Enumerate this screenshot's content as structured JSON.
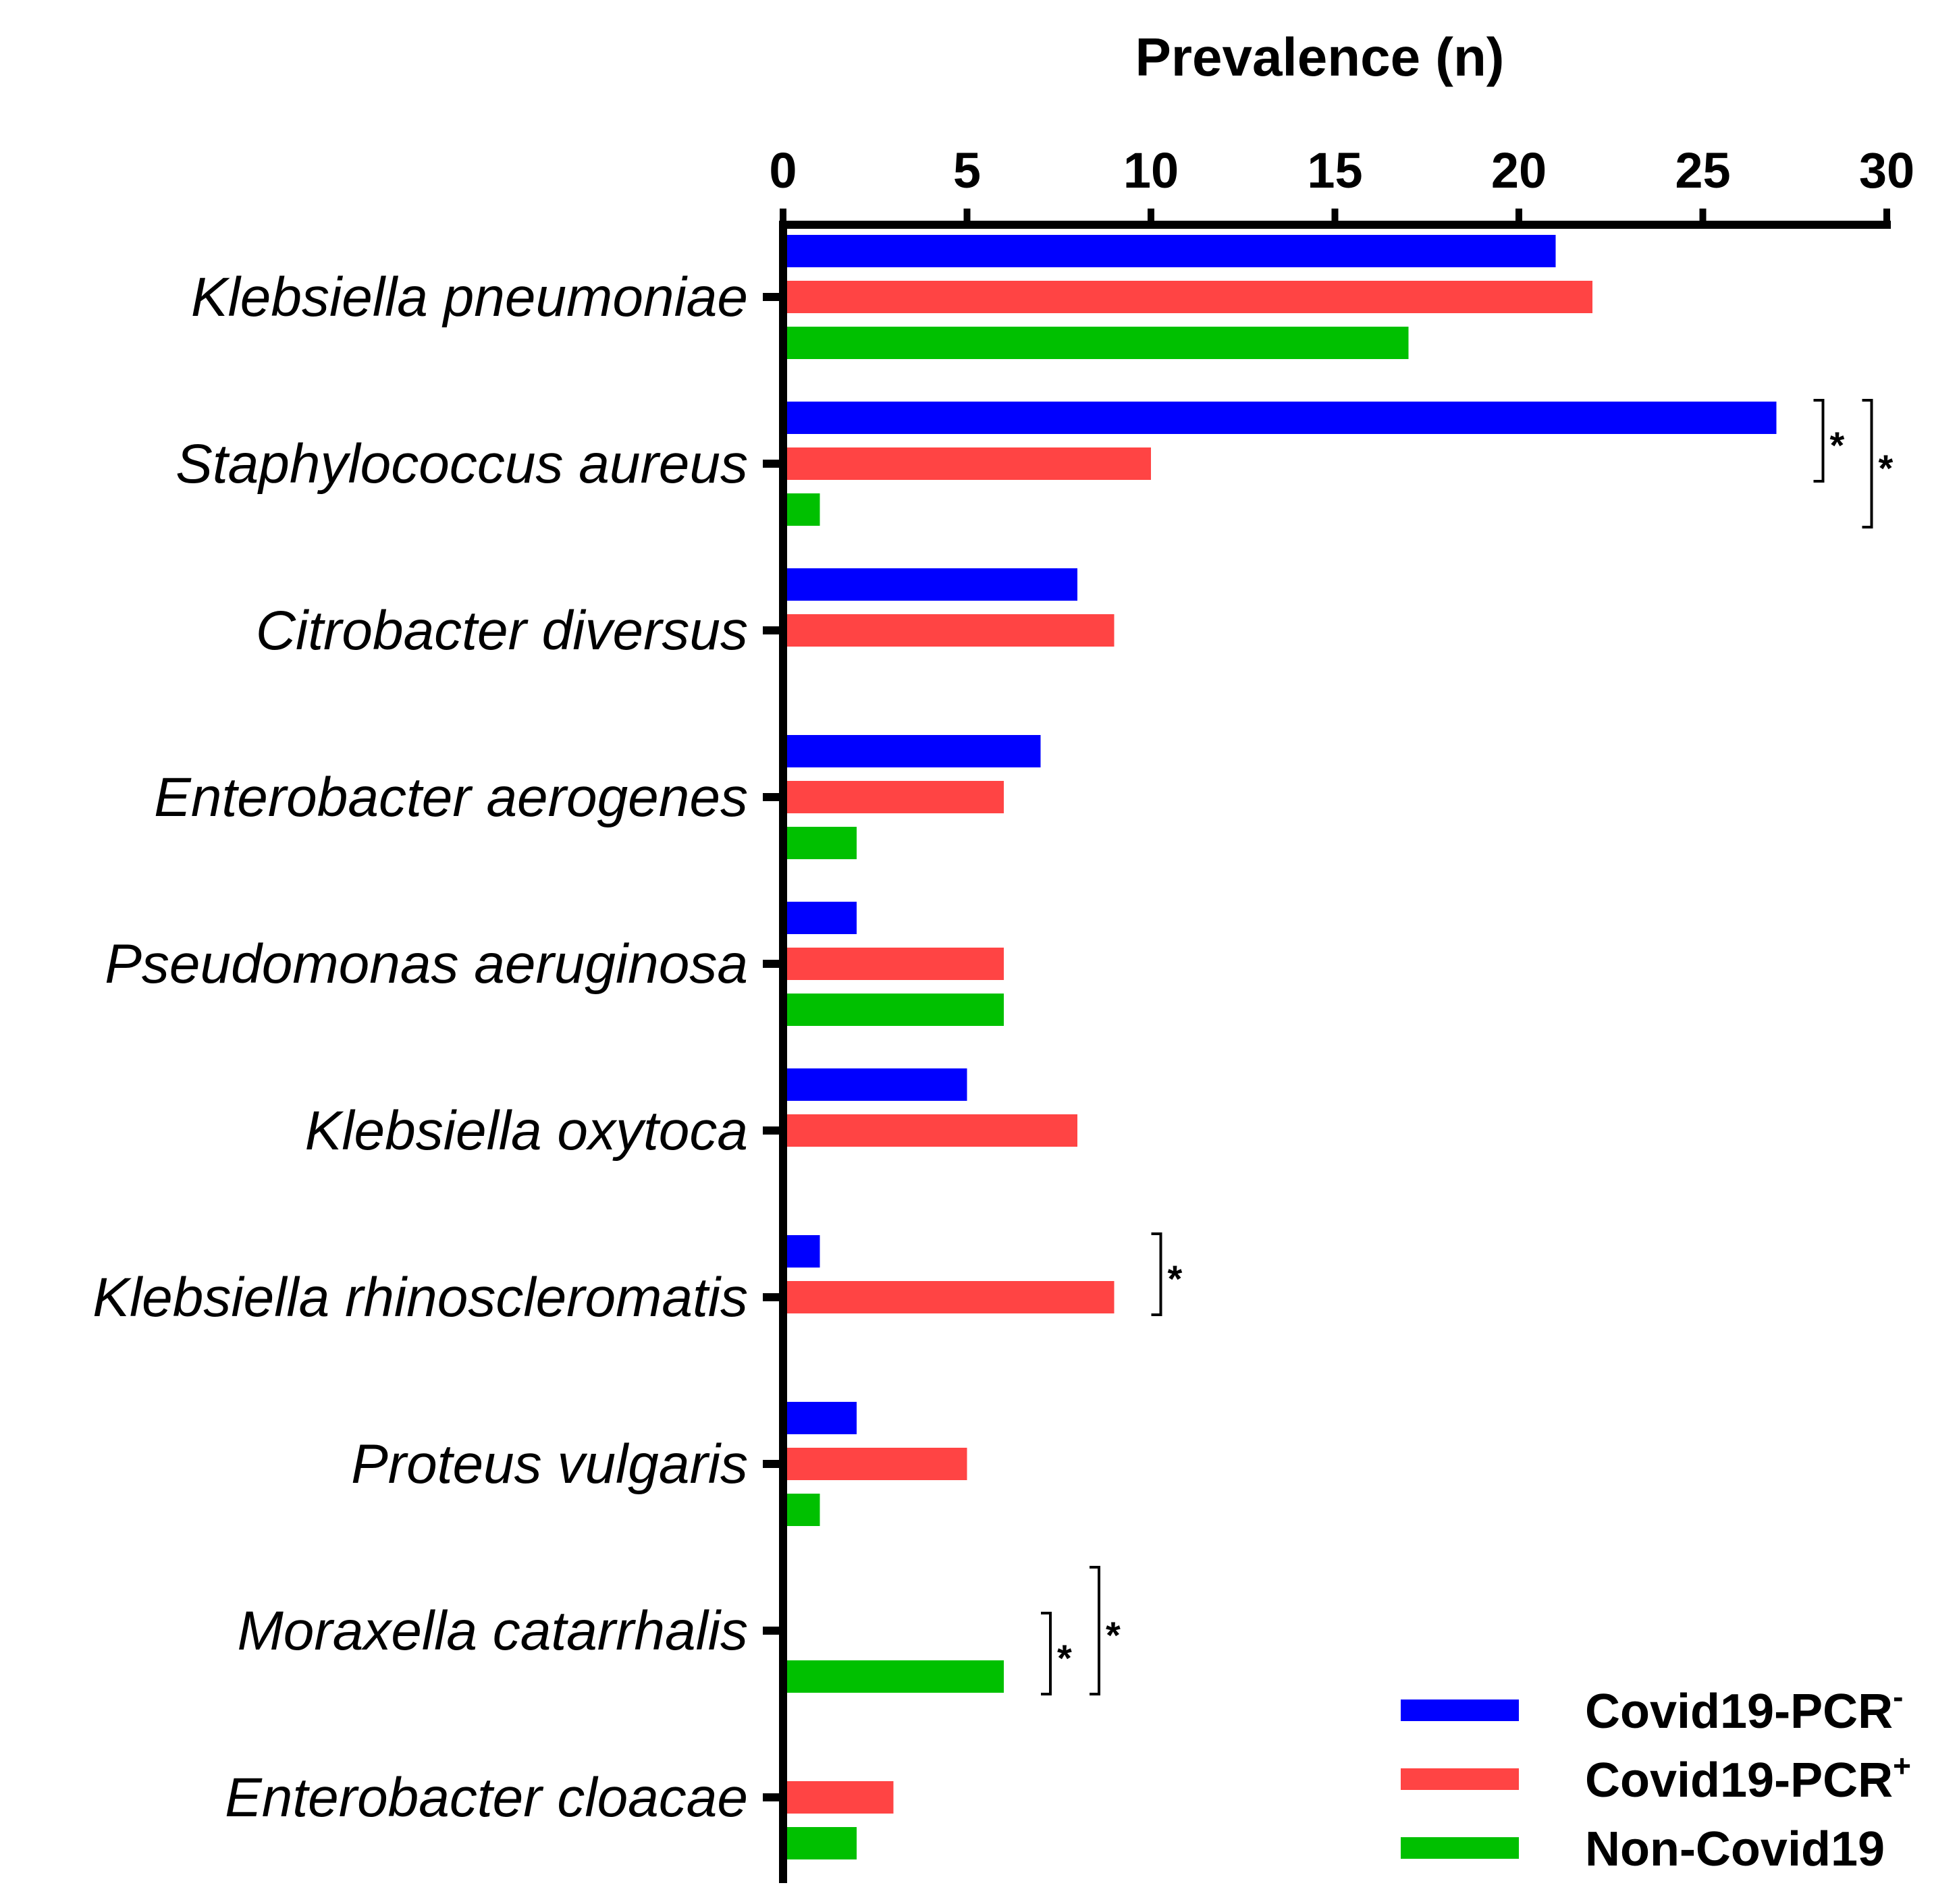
{
  "chart_data": {
    "type": "bar",
    "orientation": "horizontal",
    "xlabel": "Prevalence (n)",
    "xlim": [
      0,
      30
    ],
    "xticks": [
      0,
      5,
      10,
      15,
      20,
      25,
      30
    ],
    "categories": [
      "Klebsiella pneumoniae",
      "Staphylococcus aureus",
      "Citrobacter diversus",
      "Enterobacter aerogenes",
      "Pseudomonas aeruginosa",
      "Klebsiella oxytoca",
      "Klebsiella rhinoscleromatis",
      "Proteus vulgaris",
      "Moraxella catarrhalis",
      "Enterobacter cloacae"
    ],
    "series": [
      {
        "name": "Covid19-PCR",
        "superscript": "-",
        "color": "#0000ff",
        "values": [
          21,
          27,
          8,
          7,
          2,
          5,
          1,
          2,
          0,
          0
        ]
      },
      {
        "name": "Covid19-PCR",
        "superscript": "+",
        "color": "#ff4444",
        "values": [
          22,
          10,
          9,
          6,
          6,
          8,
          9,
          5,
          0,
          3
        ]
      },
      {
        "name": "Non-Covid19",
        "superscript": "",
        "color": "#00c000",
        "values": [
          17,
          1,
          0,
          2,
          6,
          0,
          0,
          1,
          6,
          2
        ]
      }
    ],
    "significance": [
      {
        "category": 1,
        "from": 0,
        "to": 1,
        "label": "*"
      },
      {
        "category": 1,
        "from": 0,
        "to": 2,
        "label": "*"
      },
      {
        "category": 6,
        "from": 0,
        "to": 1,
        "label": "*"
      },
      {
        "category": 8,
        "from": 0,
        "to": 2,
        "label": "*"
      },
      {
        "category": 8,
        "from": 1,
        "to": 2,
        "label": "*"
      }
    ],
    "legend_position": "bottom-right"
  }
}
